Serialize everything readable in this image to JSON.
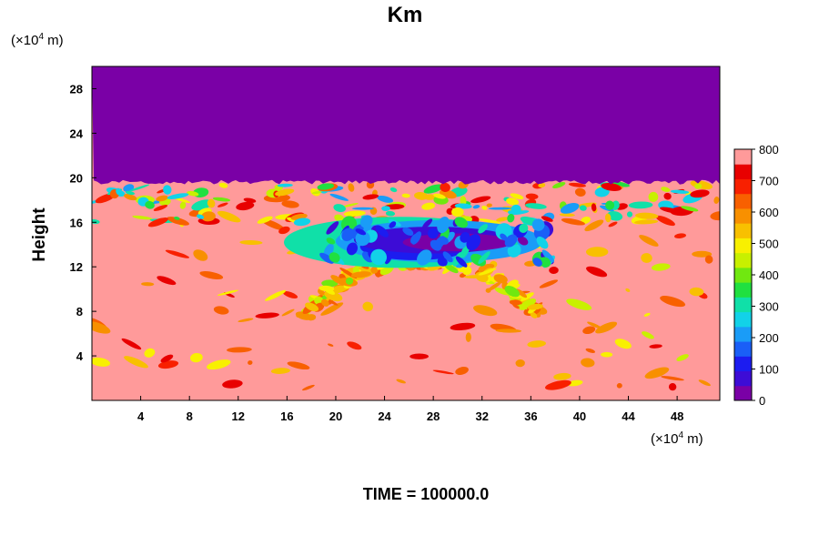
{
  "chart_data": {
    "type": "heatmap",
    "title": "Km",
    "ylabel": "Height",
    "y_unit_prefix": "(×10",
    "x_unit_prefix": "(×10",
    "unit_exponent": "4",
    "unit_suffix": " m)",
    "xlim": [
      0,
      51.5
    ],
    "ylim": [
      0,
      30
    ],
    "x_ticks": [
      4,
      8,
      12,
      16,
      20,
      24,
      28,
      32,
      36,
      40,
      44,
      48
    ],
    "y_ticks": [
      4,
      8,
      12,
      16,
      20,
      24,
      28
    ],
    "colorbar": {
      "min": 0,
      "max": 800,
      "tick_values": [
        0,
        100,
        200,
        300,
        400,
        500,
        600,
        700,
        800
      ],
      "colors": [
        "#7a00a6",
        "#3d0cd6",
        "#1c1cf0",
        "#1a5ff7",
        "#1a9cf7",
        "#12d2e8",
        "#10e0a8",
        "#20e040",
        "#70e810",
        "#c8f000",
        "#f8f000",
        "#f8c000",
        "#f89000",
        "#f86000",
        "#f82000",
        "#e80000",
        "#ff9a9a"
      ]
    },
    "regions": {
      "upper_layer_value": 0,
      "upper_layer_bottom": 19.6,
      "background_value": 800,
      "low_core": {
        "x": [
          19,
          38
        ],
        "y": [
          12,
          16.5
        ],
        "min_value": 40
      },
      "arc_band": {
        "center_x": 27,
        "y_range": [
          3,
          13
        ],
        "value": 650
      }
    },
    "footer": "TIME = 100000.0"
  }
}
